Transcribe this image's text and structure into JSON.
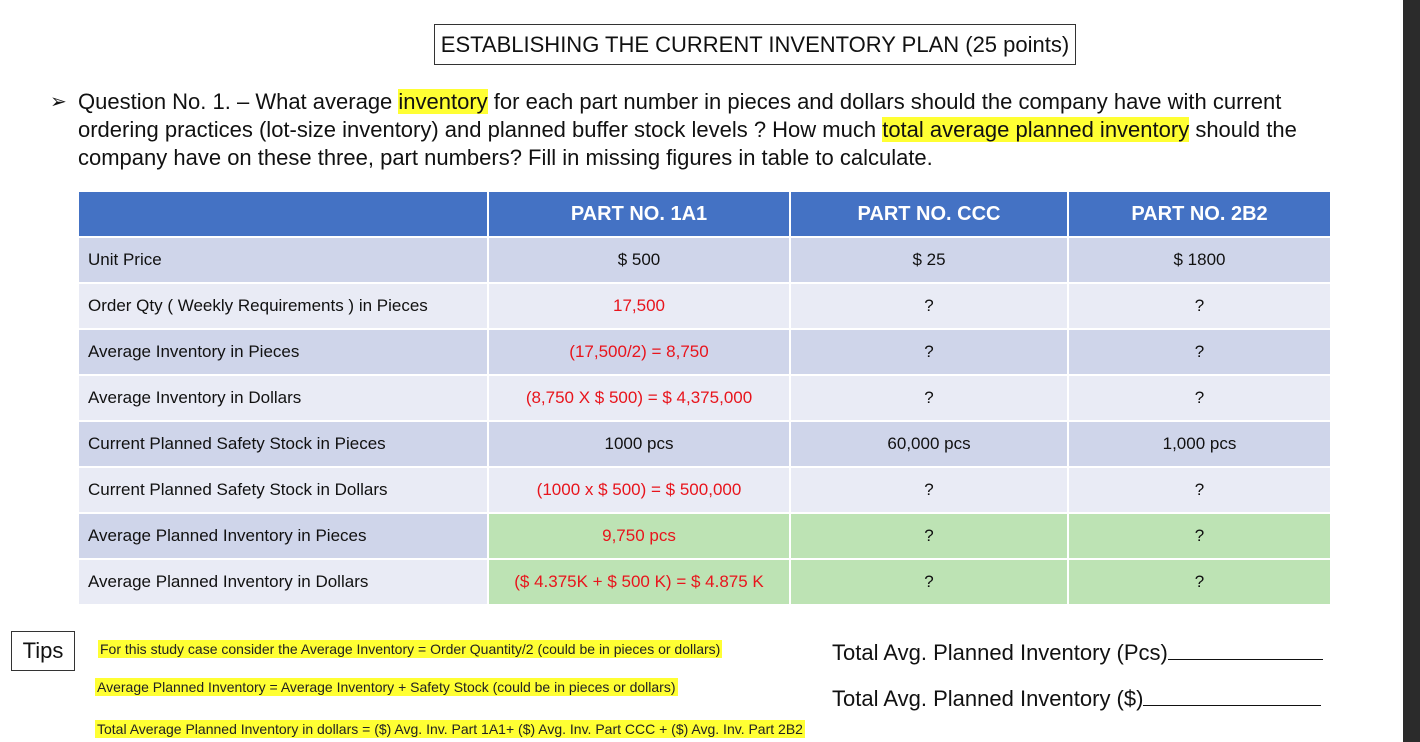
{
  "title": "ESTABLISHING THE CURRENT INVENTORY PLAN (25 points)",
  "question": {
    "bullet": "➢",
    "part1": "Question No. 1. – What average ",
    "hl1": "inventory",
    "part2": " for each part number in pieces and dollars should the company have with current ordering practices (lot-size inventory) and planned buffer stock levels ?  How much ",
    "hl2": "total average planned inventory",
    "part3": " should the company have on these three, part numbers?  Fill in missing figures in table to calculate."
  },
  "table": {
    "headers": [
      "",
      "PART NO. 1A1",
      "PART NO. CCC",
      "PART NO. 2B2"
    ],
    "rows": [
      {
        "label": "Unit Price",
        "values": [
          "$ 500",
          "$ 25",
          "$ 1800"
        ],
        "red": [
          false,
          false,
          false
        ]
      },
      {
        "label": "Order Qty ( Weekly Requirements ) in Pieces",
        "values": [
          "17,500",
          "?",
          "?"
        ],
        "red": [
          true,
          false,
          false
        ]
      },
      {
        "label": "Average Inventory in Pieces",
        "values": [
          "(17,500/2) = 8,750",
          "?",
          "?"
        ],
        "red": [
          true,
          false,
          false
        ]
      },
      {
        "label": "Average Inventory in Dollars",
        "values": [
          "(8,750 X $ 500) = $ 4,375,000",
          "?",
          "?"
        ],
        "red": [
          true,
          false,
          false
        ]
      },
      {
        "label": "Current Planned Safety Stock in Pieces",
        "values": [
          "1000 pcs",
          "60,000 pcs",
          "1,000 pcs"
        ],
        "red": [
          false,
          false,
          false
        ]
      },
      {
        "label": "Current Planned Safety Stock in Dollars",
        "values": [
          "(1000 x $ 500) = $ 500,000",
          "?",
          "?"
        ],
        "red": [
          true,
          false,
          false
        ]
      },
      {
        "label": "Average Planned Inventory in Pieces",
        "values": [
          "9,750 pcs",
          "?",
          "?"
        ],
        "red": [
          true,
          false,
          false
        ]
      },
      {
        "label": "Average Planned Inventory in Dollars",
        "values": [
          "($ 4.375K + $ 500 K) = $ 4.875 K",
          "?",
          "?"
        ],
        "red": [
          true,
          false,
          false
        ]
      }
    ]
  },
  "tips": {
    "label": "Tips",
    "lines": [
      "For this study case consider the Average Inventory = Order Quantity/2 (could be in pieces or dollars)",
      "Average Planned Inventory  = Average Inventory  + Safety Stock  (could be in pieces or dollars)",
      "Total Average Planned Inventory in dollars = ($) Avg. Inv. Part 1A1+ ($) Avg. Inv. Part CCC + ($) Avg. Inv. Part 2B2"
    ]
  },
  "totals": {
    "pcs": "Total Avg. Planned Inventory (Pcs)",
    "dollars": "Total Avg. Planned Inventory ($)"
  },
  "colors": {
    "header_blue": "#4472c4",
    "row_dark": "#cfd5ea",
    "row_light": "#e9ebf5",
    "green": "#bde3b4",
    "red_text": "#e8141c",
    "highlight": "#ffff33"
  }
}
